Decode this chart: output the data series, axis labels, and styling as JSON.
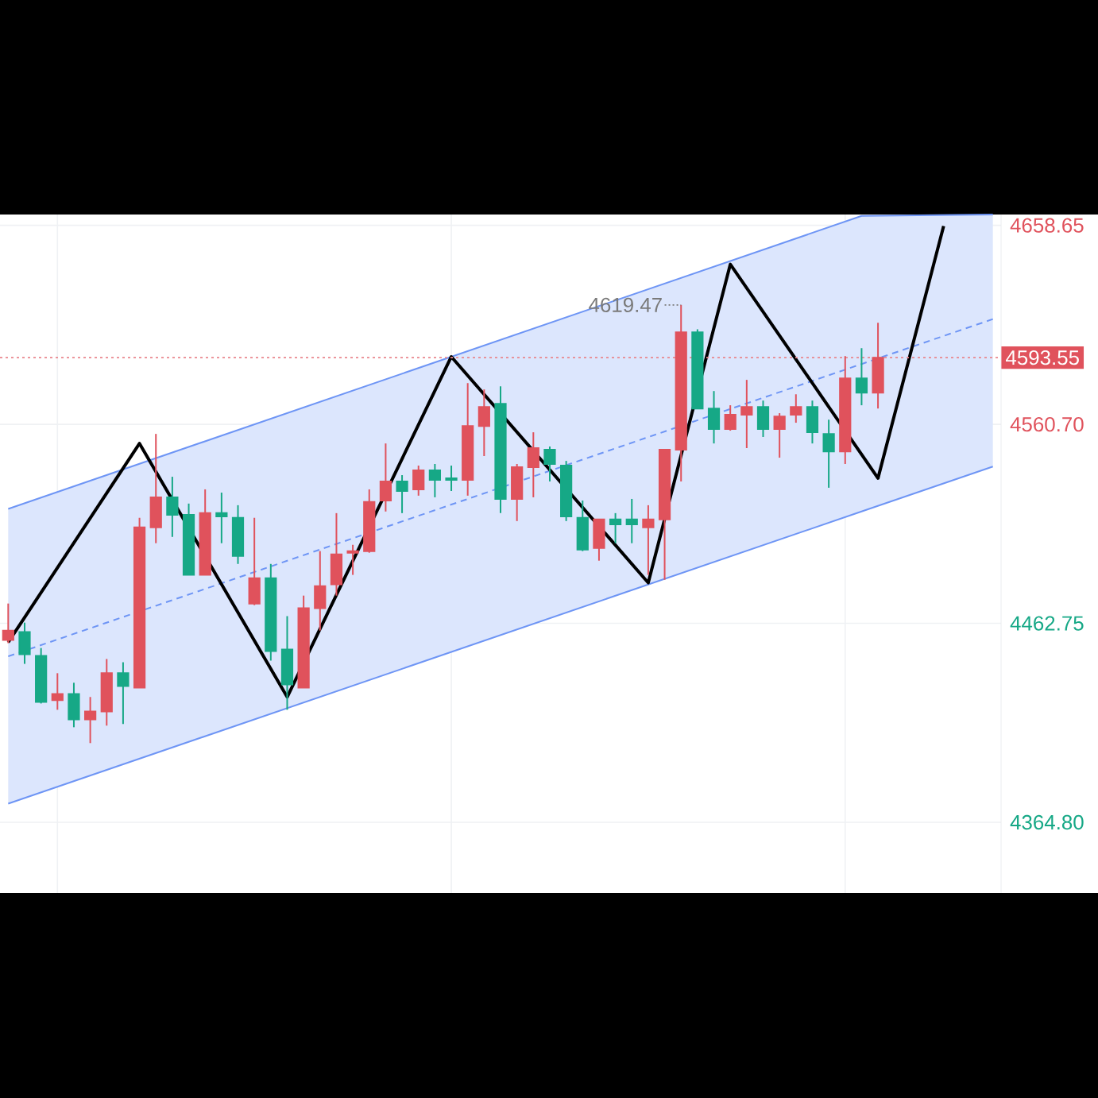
{
  "chart_data": {
    "type": "candlestick",
    "categories": [
      null,
      null,
      null,
      null,
      null,
      null,
      null,
      null,
      null,
      null,
      null,
      null,
      null,
      null,
      null,
      null,
      null,
      null,
      null,
      null,
      null,
      null,
      null,
      null,
      null,
      null,
      null,
      null,
      null,
      null,
      null,
      null,
      null,
      null,
      null,
      null,
      null,
      null,
      null,
      null,
      null,
      null,
      null,
      null,
      null,
      null,
      null,
      null,
      null,
      null,
      null,
      null,
      null,
      null,
      null,
      null,
      null,
      null,
      null,
      null,
      null
    ],
    "ohlc": [
      [
        4454.6,
        4472.5,
        4453.0,
        4459.2
      ],
      [
        4458.5,
        4463.1,
        4442.8,
        4447.5
      ],
      [
        4446.7,
        4450.6,
        4423.3,
        4424.1
      ],
      [
        4424.9,
        4438.2,
        4420.2,
        4428.0
      ],
      [
        4428.0,
        4433.5,
        4411.6,
        4415.5
      ],
      [
        4415.5,
        4426.5,
        4403.8,
        4419.4
      ],
      [
        4419.4,
        4445.2,
        4412.4,
        4438.2
      ],
      [
        4438.2,
        4443.6,
        4413.2,
        4431.9
      ],
      [
        4431.1,
        4514.7,
        4431.1,
        4510.0
      ],
      [
        4510.0,
        4556.0,
        4502.2,
        4524.8
      ],
      [
        4524.8,
        4534.9,
        4505.3,
        4516.2
      ],
      [
        4516.2,
        4521.7,
        4486.6,
        4486.6
      ],
      [
        4486.6,
        4528.7,
        4486.6,
        4517.0
      ],
      [
        4517.0,
        4527.1,
        4502.2,
        4515.4
      ],
      [
        4514.7,
        4520.9,
        4492.0,
        4495.9
      ],
      [
        4472.5,
        4514.7,
        4471.7,
        4485.0
      ],
      [
        4485.0,
        4492.0,
        4444.4,
        4449.1
      ],
      [
        4449.9,
        4466.3,
        4420.2,
        4432.7
      ],
      [
        4431.1,
        4476.4,
        4431.1,
        4470.2
      ],
      [
        4470.2,
        4498.3,
        4459.2,
        4481.1
      ],
      [
        4481.9,
        4517.0,
        4476.4,
        4496.7
      ],
      [
        4497.5,
        4501.4,
        4486.6,
        4498.3
      ],
      [
        4498.3,
        4528.7,
        4497.5,
        4522.5
      ],
      [
        4523.2,
        4551.3,
        4517.8,
        4532.6
      ],
      [
        4532.6,
        4535.7,
        4517.0,
        4527.9
      ],
      [
        4528.7,
        4540.4,
        4525.6,
        4538.1
      ],
      [
        4538.1,
        4541.2,
        4524.8,
        4533.4
      ],
      [
        4534.2,
        4540.4,
        4527.9,
        4533.4
      ],
      [
        4533.4,
        4581.0,
        4525.6,
        4559.9
      ],
      [
        4559.9,
        4577.9,
        4545.1,
        4569.3
      ],
      [
        4570.8,
        4579.4,
        4517.0,
        4524.0
      ],
      [
        4524.0,
        4541.2,
        4513.1,
        4539.6
      ],
      [
        4539.6,
        4556.8,
        4524.8,
        4549.0
      ],
      [
        4548.2,
        4549.8,
        4532.6,
        4541.2
      ],
      [
        4540.4,
        4542.7,
        4513.1,
        4515.4
      ],
      [
        4514.7,
        4523.2,
        4498.3,
        4499.0
      ],
      [
        4499.8,
        4513.9,
        4493.6,
        4513.9
      ],
      [
        4513.9,
        4517.0,
        4502.2,
        4511.5
      ],
      [
        4513.9,
        4524.0,
        4502.2,
        4511.5
      ],
      [
        4510.0,
        4520.9,
        4486.6,
        4513.9
      ],
      [
        4513.9,
        4548.2,
        4484.2,
        4548.2
      ],
      [
        4548.2,
        4619.47,
        4532.6,
        4606.0
      ],
      [
        4606.0,
        4607.5,
        4568.5,
        4568.5
      ],
      [
        4568.5,
        4577.1,
        4551.3,
        4558.4
      ],
      [
        4558.4,
        4570.1,
        4557.6,
        4565.4
      ],
      [
        4565.4,
        4582.6,
        4549.0,
        4569.3
      ],
      [
        4569.3,
        4572.4,
        4554.5,
        4558.4
      ],
      [
        4558.4,
        4566.2,
        4544.3,
        4564.6
      ],
      [
        4565.4,
        4575.5,
        4561.5,
        4569.3
      ],
      [
        4569.3,
        4572.4,
        4551.3,
        4556.8
      ],
      [
        4556.0,
        4563.0,
        4529.5,
        4547.4
      ],
      [
        4547.4,
        4594.3,
        4541.2,
        4583.3
      ],
      [
        4583.3,
        4598.2,
        4570.1,
        4576.3
      ],
      [
        4576.3,
        4610.7,
        4568.5,
        4593.55
      ],
      null,
      null,
      null,
      null,
      null,
      null,
      null
    ],
    "colors": [
      "#e0525c",
      "#16a886",
      "#16a886",
      "#e0525c",
      "#16a886",
      "#e0525c",
      "#e0525c",
      "#16a886",
      "#e0525c",
      "#e0525c",
      "#16a886",
      "#16a886",
      "#e0525c",
      "#16a886",
      "#16a886",
      "#e0525c",
      "#16a886",
      "#16a886",
      "#e0525c",
      "#e0525c",
      "#e0525c",
      "#e0525c",
      "#e0525c",
      "#e0525c",
      "#16a886",
      "#e0525c",
      "#16a886",
      "#16a886",
      "#e0525c",
      "#e0525c",
      "#16a886",
      "#e0525c",
      "#e0525c",
      "#16a886",
      "#16a886",
      "#16a886",
      "#e0525c",
      "#16a886",
      "#16a886",
      "#e0525c",
      "#e0525c",
      "#e0525c",
      "#16a886",
      "#16a886",
      "#e0525c",
      "#e0525c",
      "#16a886",
      "#e0525c",
      "#e0525c",
      "#16a886",
      "#16a886",
      "#e0525c",
      "#16a886",
      "#e0525c",
      null,
      null,
      null,
      null,
      null,
      null,
      null
    ],
    "series": [
      {
        "type": "line",
        "values": [
          4446.5,
          null,
          null,
          null,
          null,
          null,
          null,
          null,
          null,
          null,
          null,
          null,
          null,
          null,
          null,
          null,
          null,
          null,
          null,
          null,
          null,
          null,
          null,
          null,
          null,
          null,
          null,
          null,
          null,
          null,
          null,
          null,
          null,
          null,
          null,
          null,
          null,
          null,
          null,
          null,
          null,
          null,
          null,
          null,
          null,
          null,
          null,
          null,
          null,
          null,
          null,
          null,
          4590.4,
          null,
          null,
          null,
          null,
          null,
          null,
          null,
          4612.5
        ],
        "lower": [
          4374.0,
          null,
          null,
          null,
          null,
          null,
          null,
          null,
          null,
          null,
          null,
          null,
          null,
          null,
          null,
          null,
          null,
          null,
          null,
          null,
          null,
          null,
          null,
          null,
          null,
          null,
          null,
          null,
          null,
          null,
          null,
          null,
          null,
          null,
          null,
          null,
          null,
          null,
          null,
          null,
          null,
          null,
          null,
          null,
          null,
          null,
          null,
          null,
          null,
          null,
          null,
          null,
          4517.8,
          null,
          null,
          null,
          null,
          null,
          null,
          null,
          4539.9
        ],
        "upper": [
          4519.1,
          null,
          null,
          null,
          null,
          null,
          null,
          null,
          null,
          null,
          null,
          null,
          null,
          null,
          null,
          null,
          null,
          null,
          null,
          null,
          null,
          null,
          null,
          null,
          null,
          null,
          null,
          null,
          null,
          null,
          null,
          null,
          null,
          null,
          null,
          null,
          null,
          null,
          null,
          null,
          null,
          null,
          null,
          null,
          null,
          null,
          null,
          null,
          null,
          null,
          null,
          null,
          4663.3,
          null,
          null,
          null,
          null,
          null,
          null,
          null,
          4664
        ],
        "color": "#6e95f5",
        "line_style": "dashed"
      },
      {
        "type": "line",
        "values": [
          4519.1,
          null,
          null,
          null,
          null,
          null,
          null,
          null,
          null,
          null,
          null,
          null,
          null,
          null,
          null,
          null,
          null,
          null,
          null,
          null,
          null,
          null,
          null,
          null,
          null,
          null,
          null,
          null,
          null,
          null,
          null,
          null,
          null,
          null,
          null,
          null,
          null,
          null,
          null,
          null,
          null,
          null,
          null,
          null,
          null,
          null,
          null,
          null,
          null,
          null,
          null,
          null,
          4663.3,
          null,
          null,
          null,
          null,
          null,
          null,
          null,
          4664
        ],
        "color": "#6e95f5",
        "line_style": "solid"
      },
      {
        "type": "line",
        "values": [
          4374.0,
          null,
          null,
          null,
          null,
          null,
          null,
          null,
          null,
          null,
          null,
          null,
          null,
          null,
          null,
          null,
          null,
          null,
          null,
          null,
          null,
          null,
          null,
          null,
          null,
          null,
          null,
          null,
          null,
          null,
          null,
          null,
          null,
          null,
          null,
          null,
          null,
          null,
          null,
          null,
          null,
          null,
          null,
          null,
          null,
          null,
          null,
          null,
          null,
          null,
          null,
          null,
          4517.8,
          null,
          null,
          null,
          null,
          null,
          null,
          null,
          4539.9
        ],
        "color": "#6e95f5",
        "line_style": "solid"
      },
      {
        "type": "line",
        "values": [
          4453.4,
          null,
          null,
          null,
          null,
          null,
          null,
          null,
          4551.3,
          null,
          null,
          null,
          null,
          null,
          null,
          null,
          null,
          4426.5,
          null,
          null,
          null,
          null,
          null,
          null,
          null,
          null,
          null,
          4594.0,
          null,
          null,
          null,
          null,
          null,
          null,
          null,
          null,
          null,
          null,
          null,
          4482.7,
          null,
          null,
          null,
          null,
          4639.5,
          null,
          null,
          null,
          null,
          null,
          null,
          null,
          null,
          4534.2,
          null,
          null,
          null,
          4658.3,
          null,
          null,
          null
        ],
        "color": "#000000",
        "line_style": "solid"
      }
    ],
    "ylim": [
      4330,
      4664
    ],
    "yticks": [
      {
        "value": 4364.8,
        "label": "4364.80"
      },
      4462.75,
      {
        "value": 4560.7,
        "label": "4560.70"
      },
      4658.65
    ],
    "grid": true,
    "tick_labels": "y",
    "ref_lines": [
      {
        "axis": "y",
        "value": 4593.55,
        "label": "4593.55",
        "color": "#e9868d",
        "line_style": "dotted"
      }
    ],
    "annotations": [
      "4619.47"
    ]
  }
}
